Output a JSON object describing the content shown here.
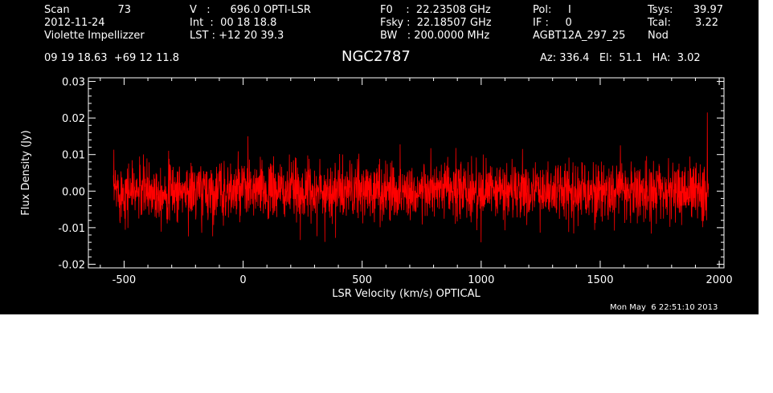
{
  "header": {
    "col1": {
      "scan_label": "Scan",
      "scan_value": "73",
      "date": "2012-11-24",
      "observer": "Violette Impellizzer",
      "coords": "09 19 18.63  +69 12 11.8"
    },
    "col2": {
      "v_line": "V   :      696.0 OPTI-LSR",
      "int_line": "Int  :  00 18 18.8",
      "lst_line": "LST : +12 20 39.3"
    },
    "col3": {
      "f0_line": "F0    :  22.23508 GHz",
      "fsky_line": "Fsky :  22.18507 GHz",
      "bw_line": "BW   : 200.0000 MHz"
    },
    "col4": {
      "pol_line": "Pol:     I",
      "if_line": "IF :     0",
      "project": "AGBT12A_297_25"
    },
    "col5": {
      "tsys_label": "Tsys:",
      "tsys_value": "39.97",
      "tcal_label": "Tcal:",
      "tcal_value": "3.22",
      "mode": "Nod"
    },
    "source": "NGC2787",
    "pointing": "Az: 336.4   El:  51.1   HA:  3.02",
    "timestamp": "Mon May  6 22:51:10 2013"
  },
  "chart_data": {
    "type": "line",
    "title": "NGC2787",
    "xlabel": "LSR Velocity (km/s) OPTICAL",
    "ylabel": "Flux Density (Jy)",
    "xlim": [
      -650,
      2020
    ],
    "ylim": [
      -0.021,
      0.031
    ],
    "x_ticks": [
      -500,
      0,
      500,
      1000,
      1500,
      2000
    ],
    "x_tick_labels": [
      "-500",
      "0",
      "500",
      "1000",
      "1500",
      "2000"
    ],
    "y_ticks": [
      -0.02,
      -0.01,
      0.0,
      0.01,
      0.02,
      0.03
    ],
    "y_tick_labels": [
      "-0.02",
      "-0.01",
      "0.00",
      "0.01",
      "0.02",
      "0.03"
    ],
    "line_color": "#ff0000",
    "axis_color": "#ffffff",
    "background": "#000000",
    "grid": false,
    "series": [
      {
        "x_start": -545,
        "x_end": 1955,
        "n_channels": 2500,
        "baseline": 0.0,
        "rms": 0.004,
        "features": [
          {
            "x": -530,
            "y": 0.003
          },
          {
            "x": 20,
            "y": 0.015
          },
          {
            "x": 320,
            "y": 0.004
          },
          {
            "x": 1000,
            "y": -0.014
          },
          {
            "x": 1930,
            "y": 0.005
          },
          {
            "x": 1950,
            "y": 0.0215
          }
        ]
      }
    ]
  }
}
